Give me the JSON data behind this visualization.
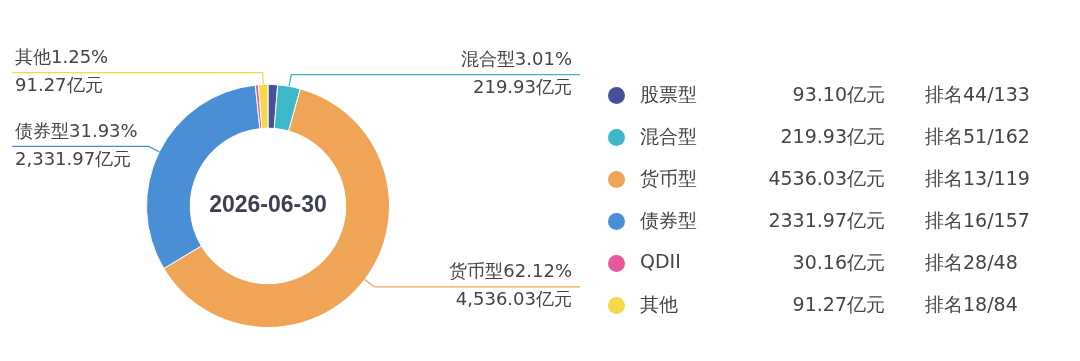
{
  "chart_data": {
    "type": "donut",
    "title": "2026-06-30",
    "categories": [
      "股票型",
      "混合型",
      "货币型",
      "债券型",
      "QDII",
      "其他"
    ],
    "values": [
      93.1,
      219.93,
      4536.03,
      2331.97,
      30.16,
      91.27
    ],
    "colors": [
      "#48509a",
      "#3db8c9",
      "#f0a456",
      "#4a8ed6",
      "#e8579c",
      "#f3d84c"
    ],
    "value_labels": [
      null,
      "混合型3.01%\n219.93亿元",
      "货币型62.12%\n4,536.03亿元",
      "债券型31.93%\n2,331.97亿元",
      null,
      "其他1.25%\n91.27亿元"
    ],
    "legend": "right",
    "annotations": [
      "93.10亿元",
      "排名44/133",
      "219.93亿元",
      "排名51/162",
      "4536.03亿元",
      "排名13/119",
      "2331.97亿元",
      "排名16/157",
      "30.16亿元",
      "排名28/48",
      "91.27亿元",
      "排名18/84"
    ]
  }
}
